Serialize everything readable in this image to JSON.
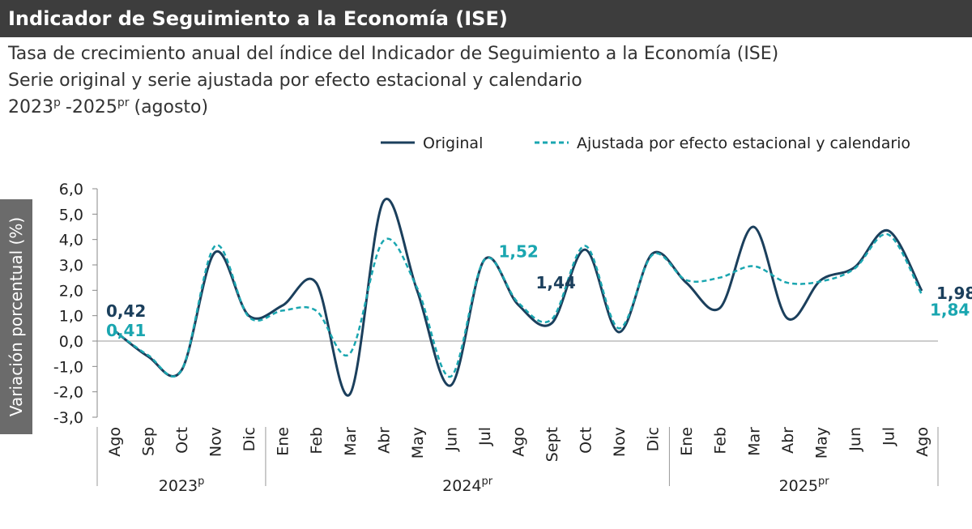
{
  "header": {
    "title": "Indicador de Seguimiento a la Economía (ISE)"
  },
  "chart_data": {
    "type": "line",
    "subtitle_lines": [
      "Tasa de crecimiento anual del índice del Indicador de Seguimiento a la Economía (ISE)",
      "Serie original y serie ajustada por efecto estacional y calendario"
    ],
    "period": {
      "start": "2023",
      "start_sup": "p",
      "end": "-2025",
      "end_sup": "pr",
      "note": "(agosto)"
    },
    "y_label": "Variación porcentual (%)",
    "groups": [
      {
        "label": "2023",
        "sup": "p",
        "categories": [
          "Ago",
          "Sep",
          "Oct",
          "Nov",
          "Dic"
        ]
      },
      {
        "label": "2024",
        "sup": "pr",
        "categories": [
          "Ene",
          "Feb",
          "Mar",
          "Abr",
          "May",
          "Jun",
          "Jul",
          "Ago",
          "Sept",
          "Oct",
          "Nov",
          "Dic"
        ]
      },
      {
        "label": "2025",
        "sup": "pr",
        "categories": [
          "Ene",
          "Feb",
          "Mar",
          "Abr",
          "May",
          "Jun",
          "Jul",
          "Ago"
        ]
      }
    ],
    "series": [
      {
        "name": "Original",
        "color": "#1b3f5c",
        "dash": false,
        "values": [
          0.42,
          -0.6,
          -1.15,
          3.5,
          1.0,
          1.4,
          2.3,
          -2.1,
          5.5,
          2.0,
          -1.75,
          3.2,
          1.44,
          0.7,
          3.6,
          0.35,
          3.45,
          2.3,
          1.3,
          4.5,
          0.9,
          2.4,
          2.9,
          4.35,
          1.98
        ],
        "value_labels": [
          "0,42",
          null,
          null,
          null,
          null,
          null,
          null,
          null,
          null,
          null,
          null,
          null,
          "1,44",
          null,
          null,
          null,
          null,
          null,
          null,
          null,
          null,
          null,
          null,
          null,
          "1,98"
        ]
      },
      {
        "name": "Ajustada por efecto estacional y calendario",
        "color": "#1aa6b0",
        "dash": true,
        "values": [
          0.41,
          -0.55,
          -1.15,
          3.75,
          0.95,
          1.2,
          1.2,
          -0.5,
          3.95,
          2.1,
          -1.4,
          3.2,
          1.52,
          0.85,
          3.75,
          0.5,
          3.4,
          2.4,
          2.5,
          2.95,
          2.3,
          2.35,
          2.85,
          4.2,
          1.84
        ],
        "value_labels": [
          "0,41",
          null,
          null,
          null,
          null,
          null,
          null,
          null,
          null,
          null,
          null,
          null,
          "1,52",
          null,
          null,
          null,
          null,
          null,
          null,
          null,
          null,
          null,
          null,
          null,
          "1,84"
        ]
      }
    ],
    "ylim": [
      -3,
      6
    ],
    "yticks": [
      {
        "value": -3,
        "label": "-3,0"
      },
      {
        "value": -2,
        "label": "-2,0"
      },
      {
        "value": -1,
        "label": "-1,0"
      },
      {
        "value": 0,
        "label": "0,0"
      },
      {
        "value": 1,
        "label": "1,0"
      },
      {
        "value": 2,
        "label": "2,0"
      },
      {
        "value": 3,
        "label": "3,0"
      },
      {
        "value": 4,
        "label": "4,0"
      },
      {
        "value": 5,
        "label": "5,0"
      },
      {
        "value": 6,
        "label": "6,0"
      }
    ]
  }
}
